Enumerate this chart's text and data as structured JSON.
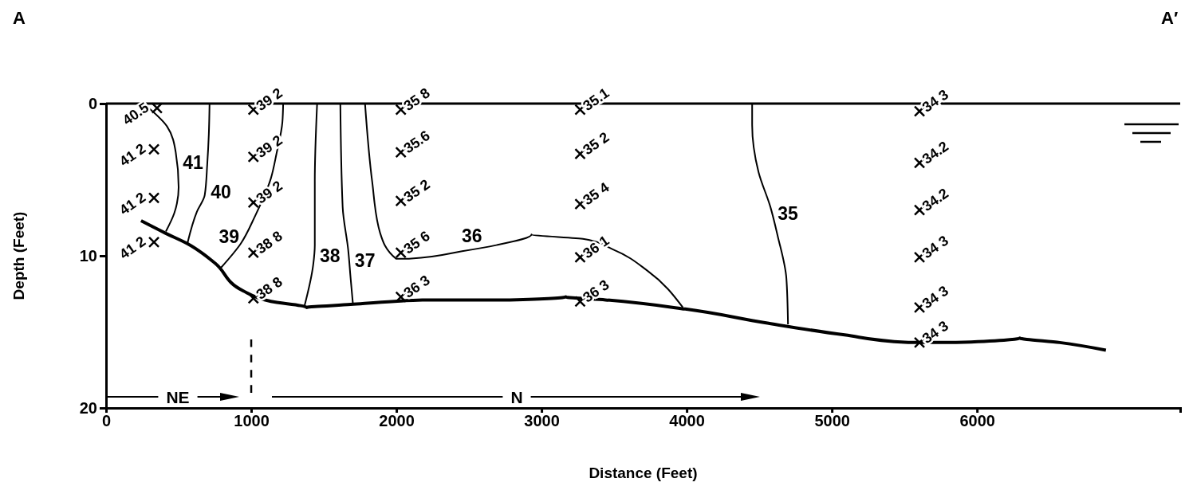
{
  "chart_data": {
    "type": "line",
    "xlabel": "Distance (Feet)",
    "ylabel": "Depth (Feet)",
    "xlim": [
      0,
      7400
    ],
    "xticks": [
      0,
      1000,
      2000,
      3000,
      4000,
      5000,
      6000
    ],
    "ylim": [
      20,
      0
    ],
    "yticks": [
      0,
      10,
      20
    ],
    "ref_lines": [
      {
        "axis": "y",
        "value": 0,
        "color": "#000000"
      }
    ],
    "series": [
      {
        "color": "#000000",
        "x": [
          241,
          406,
          560,
          752,
          944,
          1136,
          1383,
          1685,
          1987,
          2179,
          2782,
          3167,
          3441,
          3990,
          4539,
          5088,
          5527,
          5856,
          6295,
          6570,
          6888
        ],
        "values": [
          7.7,
          8.5,
          9.2,
          10.5,
          12.3,
          13.0,
          13.4,
          13.2,
          13.0,
          12.9,
          12.9,
          12.7,
          12.9,
          13.5,
          14.4,
          15.2,
          15.7,
          15.7,
          15.4,
          15.7,
          16.2
        ]
      },
      {
        "color": "#000000",
        "line_style": "dashed",
        "x": [
          1000,
          1000
        ],
        "values": [
          15.5,
          19
        ]
      },
      {
        "name": "41",
        "color": "#000000",
        "x": [
          258,
          420,
          480,
          500,
          470,
          412
        ],
        "values": [
          0,
          1.5,
          3.2,
          5.5,
          7.2,
          8.4
        ]
      },
      {
        "name": "40",
        "color": "#000000",
        "x": [
          713,
          708,
          697,
          680,
          626,
          560
        ],
        "values": [
          0,
          2,
          4,
          6,
          7.1,
          9.2
        ]
      },
      {
        "name": "39",
        "color": "#000000",
        "x": [
          1220,
          1215,
          1174,
          1136,
          1026,
          928,
          790
        ],
        "values": [
          0,
          1.2,
          3.3,
          4.9,
          7.4,
          9.2,
          10.8
        ]
      },
      {
        "name": "38",
        "color": "#000000",
        "x": [
          1454,
          1438,
          1438,
          1427,
          1367
        ],
        "values": [
          0,
          5.1,
          9.3,
          10.6,
          13.3
        ]
      },
      {
        "name": "37",
        "color": "#000000",
        "x": [
          1614,
          1630,
          1668,
          1685,
          1701
        ],
        "values": [
          0,
          6.8,
          9.6,
          11.5,
          13.2
        ]
      },
      {
        "name": "36",
        "color": "#000000",
        "x": [
          1784,
          1833,
          1888,
          1998,
          2086,
          2453,
          2689,
          2931,
          3293,
          3496,
          3732,
          3974
        ],
        "values": [
          0,
          5.1,
          8.5,
          10.2,
          10.2,
          9.7,
          9.3,
          8.6,
          8.9,
          9.6,
          11.0,
          13.4
        ]
      },
      {
        "name": "35",
        "color": "#000000",
        "x": [
          4451,
          4451,
          4495,
          4577,
          4627,
          4687,
          4698
        ],
        "values": [
          0,
          1.4,
          4.5,
          6.8,
          8.7,
          11.5,
          14.5
        ]
      },
      {
        "type": "scatter",
        "marker": "cross",
        "color": "#000000",
        "x": [
          351,
          330,
          330,
          330
        ],
        "values": [
          0.3,
          3.0,
          6.2,
          9.1
        ]
      },
      {
        "type": "scatter",
        "marker": "cross",
        "color": "#000000",
        "x": [
          1015,
          1015,
          1015,
          1015,
          1015
        ],
        "values": [
          0.4,
          3.5,
          6.5,
          9.8,
          12.8
        ]
      },
      {
        "type": "scatter",
        "marker": "cross",
        "color": "#000000",
        "x": [
          2031,
          2031,
          2031,
          2031,
          2031
        ],
        "values": [
          0.4,
          3.2,
          6.4,
          9.8,
          12.7
        ]
      },
      {
        "type": "scatter",
        "marker": "cross",
        "color": "#000000",
        "x": [
          3266,
          3266,
          3266,
          3266,
          3266
        ],
        "values": [
          0.4,
          3.3,
          6.6,
          10.1,
          13.0
        ]
      },
      {
        "type": "scatter",
        "marker": "cross",
        "color": "#000000",
        "x": [
          5604,
          5604,
          5604,
          5604,
          5604,
          5604
        ],
        "values": [
          0.5,
          3.9,
          7.0,
          10.1,
          13.4,
          15.7
        ]
      }
    ],
    "annotations": [
      "A",
      "A′",
      "NE",
      "N",
      {
        "text": "40.5",
        "x": 351,
        "y": 0.3
      },
      {
        "text": "41 2",
        "x": 330,
        "y": 3.0
      },
      {
        "text": "41 2",
        "x": 330,
        "y": 6.2
      },
      {
        "text": "41 2",
        "x": 330,
        "y": 9.1
      },
      {
        "text": "39 2",
        "x": 1015,
        "y": 0.4
      },
      {
        "text": "39 2",
        "x": 1015,
        "y": 3.5
      },
      {
        "text": "39 2",
        "x": 1015,
        "y": 6.5
      },
      {
        "text": "38 8",
        "x": 1015,
        "y": 9.8
      },
      {
        "text": "38 8",
        "x": 1015,
        "y": 12.8
      },
      {
        "text": "35 8",
        "x": 2031,
        "y": 0.4
      },
      {
        "text": "35.6",
        "x": 2031,
        "y": 3.2
      },
      {
        "text": "35 2",
        "x": 2031,
        "y": 6.4
      },
      {
        "text": "35 6",
        "x": 2031,
        "y": 9.8
      },
      {
        "text": "36 3",
        "x": 2031,
        "y": 12.7
      },
      {
        "text": "35.1",
        "x": 3266,
        "y": 0.4
      },
      {
        "text": "35 2",
        "x": 3266,
        "y": 3.3
      },
      {
        "text": "35 4",
        "x": 3266,
        "y": 6.6
      },
      {
        "text": "36 1",
        "x": 3266,
        "y": 10.1
      },
      {
        "text": "36 3",
        "x": 3266,
        "y": 13.0
      },
      {
        "text": "34 3",
        "x": 5604,
        "y": 0.5
      },
      {
        "text": "34.2",
        "x": 5604,
        "y": 3.9
      },
      {
        "text": "34.2",
        "x": 5604,
        "y": 7.0
      },
      {
        "text": "34 3",
        "x": 5604,
        "y": 10.1
      },
      {
        "text": "34 3",
        "x": 5604,
        "y": 13.4
      },
      {
        "text": "34 3",
        "x": 5604,
        "y": 15.7
      }
    ]
  }
}
